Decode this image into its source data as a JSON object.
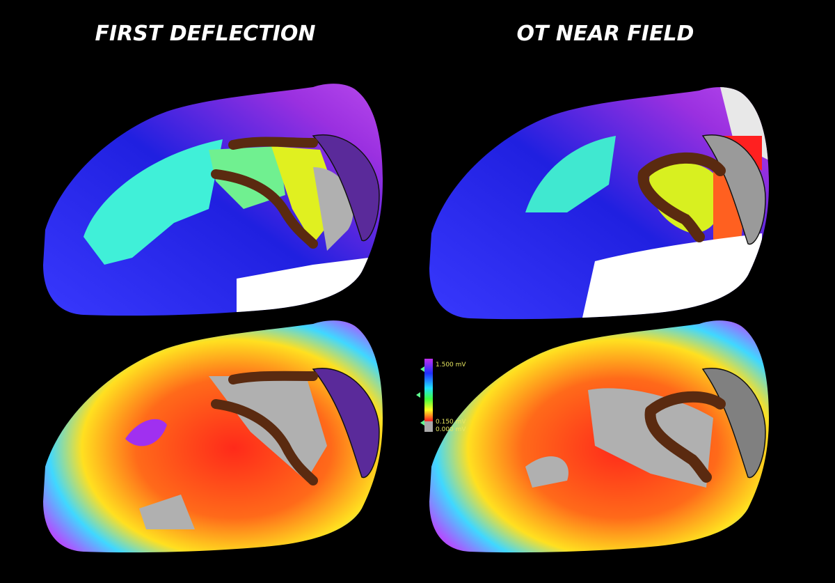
{
  "panels": [
    {
      "title": "FIRST DEFLECTION"
    },
    {
      "title": "OT NEAR FIELD"
    }
  ],
  "colorbar": {
    "labels": [
      "1.500 mV",
      "0.150 mV",
      "0.000 mV"
    ]
  }
}
